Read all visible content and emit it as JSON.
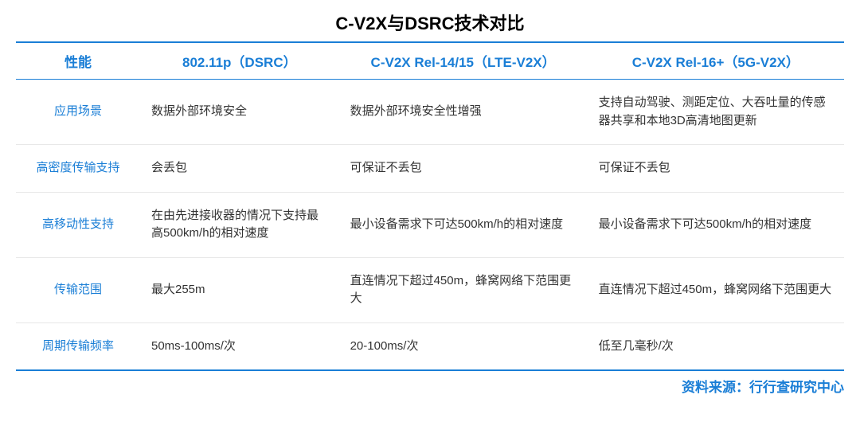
{
  "title": "C-V2X与DSRC技术对比",
  "source_label": "资料来源：行行查研究中心",
  "colors": {
    "accent": "#1a7ed6",
    "text": "#333333",
    "title": "#000000",
    "row_border": "#e8e8e8",
    "background": "#ffffff"
  },
  "typography": {
    "title_fontsize": 22,
    "header_fontsize": 17,
    "cell_fontsize": 15,
    "source_fontsize": 17,
    "font_family": "Microsoft YaHei"
  },
  "table": {
    "columns": [
      {
        "label": "性能",
        "width_pct": 15
      },
      {
        "label": "802.11p（DSRC）",
        "width_pct": 24
      },
      {
        "label": "C-V2X Rel-14/15（LTE-V2X）",
        "width_pct": 30
      },
      {
        "label": "C-V2X Rel-16+（5G-V2X）",
        "width_pct": 31
      }
    ],
    "rows": [
      {
        "header": "应用场景",
        "cells": [
          "数据外部环境安全",
          "数据外部环境安全性增强",
          "支持自动驾驶、测距定位、大吞吐量的传感器共享和本地3D高清地图更新"
        ]
      },
      {
        "header": "高密度传输支持",
        "cells": [
          "会丢包",
          "可保证不丢包",
          "可保证不丢包"
        ]
      },
      {
        "header": "高移动性支持",
        "cells": [
          "在由先进接收器的情况下支持最高500km/h的相对速度",
          "最小设备需求下可达500km/h的相对速度",
          "最小设备需求下可达500km/h的相对速度"
        ]
      },
      {
        "header": "传输范围",
        "cells": [
          "最大255m",
          "直连情况下超过450m，蜂窝网络下范围更大",
          "直连情况下超过450m，蜂窝网络下范围更大"
        ]
      },
      {
        "header": "周期传输频率",
        "cells": [
          "50ms-100ms/次",
          "20-100ms/次",
          "低至几毫秒/次"
        ]
      }
    ]
  }
}
